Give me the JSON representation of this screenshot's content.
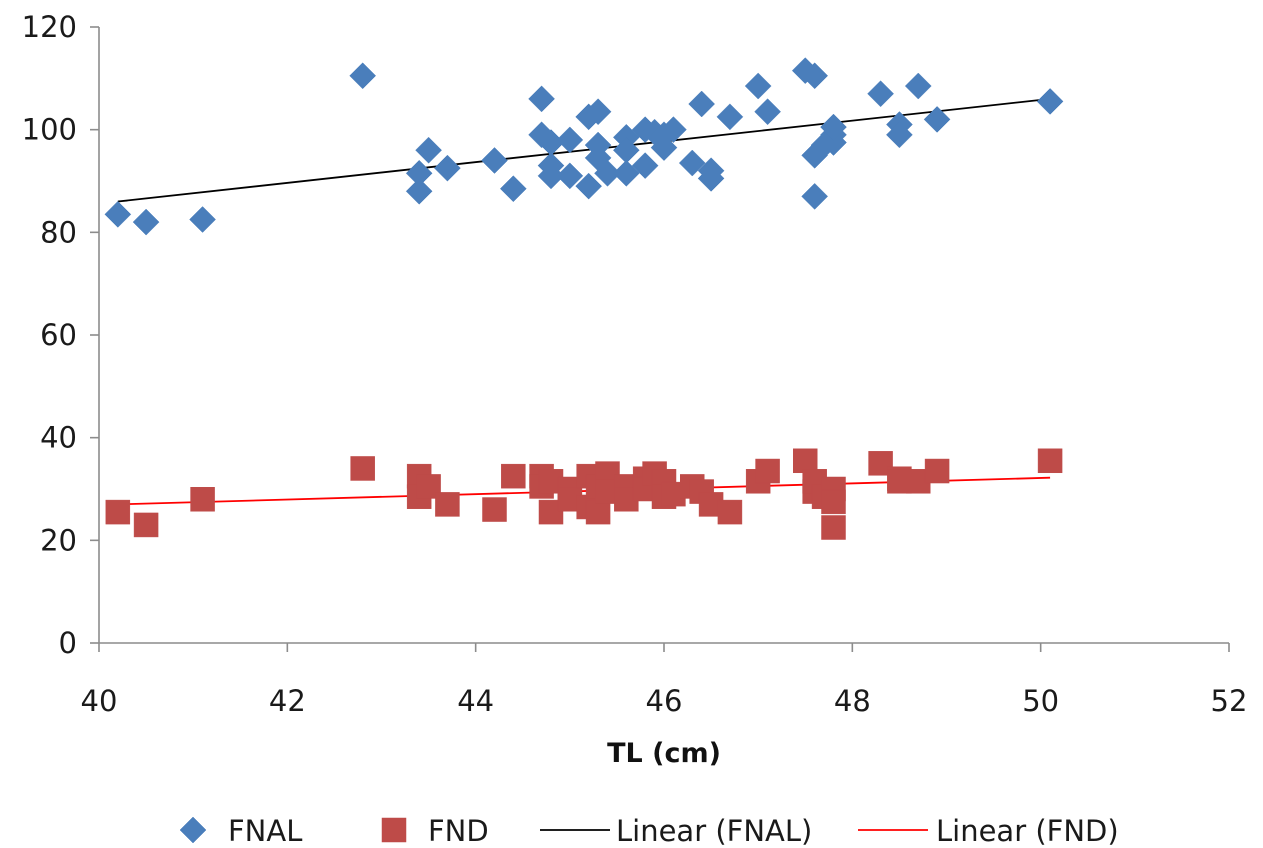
{
  "chart_data": {
    "type": "scatter",
    "xlabel": "TL (cm)",
    "ylabel": "",
    "xlim": [
      40,
      52
    ],
    "ylim": [
      0,
      120
    ],
    "x_ticks": [
      40,
      42,
      44,
      46,
      48,
      50,
      52
    ],
    "y_ticks": [
      0,
      20,
      40,
      60,
      80,
      100,
      120
    ],
    "grid": false,
    "legend_position": "bottom",
    "series": [
      {
        "name": "FNAL",
        "marker": "diamond",
        "color": "#4a7ebb",
        "points": [
          [
            40.2,
            83.5
          ],
          [
            40.5,
            82.0
          ],
          [
            41.1,
            82.5
          ],
          [
            42.8,
            110.5
          ],
          [
            43.4,
            88.0
          ],
          [
            43.4,
            91.5
          ],
          [
            43.5,
            96.0
          ],
          [
            43.7,
            92.5
          ],
          [
            44.2,
            94.0
          ],
          [
            44.4,
            88.5
          ],
          [
            44.7,
            106.0
          ],
          [
            44.7,
            99.0
          ],
          [
            44.8,
            97.5
          ],
          [
            44.8,
            93.0
          ],
          [
            44.8,
            91.0
          ],
          [
            45.0,
            98.0
          ],
          [
            45.0,
            91.0
          ],
          [
            45.2,
            102.5
          ],
          [
            45.2,
            89.0
          ],
          [
            45.3,
            103.5
          ],
          [
            45.3,
            97.0
          ],
          [
            45.3,
            94.5
          ],
          [
            45.4,
            91.5
          ],
          [
            45.6,
            98.5
          ],
          [
            45.6,
            96.0
          ],
          [
            45.6,
            91.5
          ],
          [
            45.8,
            100.0
          ],
          [
            45.8,
            93.0
          ],
          [
            45.9,
            99.5
          ],
          [
            46.0,
            99.0
          ],
          [
            46.0,
            96.5
          ],
          [
            46.1,
            100.0
          ],
          [
            46.3,
            93.5
          ],
          [
            46.4,
            105.0
          ],
          [
            46.5,
            92.0
          ],
          [
            46.5,
            90.5
          ],
          [
            46.7,
            102.5
          ],
          [
            47.0,
            108.5
          ],
          [
            47.1,
            103.5
          ],
          [
            47.5,
            111.5
          ],
          [
            47.6,
            110.5
          ],
          [
            47.6,
            95.0
          ],
          [
            47.6,
            87.0
          ],
          [
            47.7,
            97.0
          ],
          [
            47.8,
            99.0
          ],
          [
            47.8,
            97.5
          ],
          [
            47.8,
            100.5
          ],
          [
            48.3,
            107.0
          ],
          [
            48.5,
            101.0
          ],
          [
            48.5,
            99.0
          ],
          [
            48.7,
            108.5
          ],
          [
            48.9,
            102.0
          ],
          [
            50.1,
            105.5
          ]
        ]
      },
      {
        "name": "FND",
        "marker": "square",
        "color": "#be4b48",
        "points": [
          [
            40.2,
            25.5
          ],
          [
            40.5,
            23.0
          ],
          [
            41.1,
            28.0
          ],
          [
            42.8,
            34.0
          ],
          [
            43.4,
            32.5
          ],
          [
            43.4,
            28.5
          ],
          [
            43.5,
            30.5
          ],
          [
            43.7,
            27.0
          ],
          [
            44.2,
            26.0
          ],
          [
            44.4,
            32.5
          ],
          [
            44.7,
            32.5
          ],
          [
            44.7,
            30.5
          ],
          [
            44.8,
            25.5
          ],
          [
            44.8,
            31.5
          ],
          [
            45.0,
            30.0
          ],
          [
            45.0,
            28.0
          ],
          [
            45.2,
            32.5
          ],
          [
            45.2,
            26.5
          ],
          [
            45.3,
            30.5
          ],
          [
            45.3,
            25.5
          ],
          [
            45.4,
            33.0
          ],
          [
            45.4,
            29.5
          ],
          [
            45.6,
            30.5
          ],
          [
            45.6,
            28.0
          ],
          [
            45.8,
            32.0
          ],
          [
            45.8,
            30.0
          ],
          [
            45.9,
            33.0
          ],
          [
            46.0,
            31.5
          ],
          [
            46.0,
            28.5
          ],
          [
            46.1,
            29.0
          ],
          [
            46.3,
            30.5
          ],
          [
            46.4,
            29.5
          ],
          [
            46.5,
            27.0
          ],
          [
            46.7,
            25.5
          ],
          [
            47.0,
            31.5
          ],
          [
            47.1,
            33.5
          ],
          [
            47.5,
            35.5
          ],
          [
            47.6,
            29.5
          ],
          [
            47.6,
            31.5
          ],
          [
            47.7,
            28.5
          ],
          [
            47.8,
            30.0
          ],
          [
            47.8,
            27.5
          ],
          [
            47.8,
            22.5
          ],
          [
            48.3,
            35.0
          ],
          [
            48.5,
            32.0
          ],
          [
            48.5,
            31.5
          ],
          [
            48.7,
            31.5
          ],
          [
            48.9,
            33.5
          ],
          [
            50.1,
            35.5
          ]
        ]
      }
    ],
    "trendlines": [
      {
        "name": "Linear (FNAL)",
        "color": "#000000",
        "from": [
          40.2,
          86.0
        ],
        "to": [
          50.1,
          106.0
        ]
      },
      {
        "name": "Linear (FND)",
        "color": "#ff0000",
        "from": [
          40.2,
          27.0
        ],
        "to": [
          50.1,
          32.2
        ]
      }
    ]
  }
}
